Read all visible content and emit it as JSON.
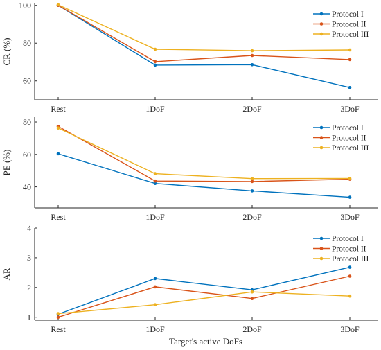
{
  "chart_data": [
    {
      "type": "line",
      "ylabel": "CR (%)",
      "categories": [
        "Rest",
        "1DoF",
        "2DoF",
        "3DoF"
      ],
      "ylim": [
        50,
        101
      ],
      "yticks": [
        60,
        80,
        100
      ],
      "legend_position": "top-right",
      "series": [
        {
          "name": "Protocol I",
          "values": [
            100,
            68.4,
            68.6,
            56.5
          ]
        },
        {
          "name": "Protocol II",
          "values": [
            100,
            70.2,
            73.5,
            71.3
          ]
        },
        {
          "name": "Protocol III",
          "values": [
            100.3,
            76.8,
            76.0,
            76.4
          ]
        }
      ]
    },
    {
      "type": "line",
      "ylabel": "PE (%)",
      "categories": [
        "Rest",
        "1DoF",
        "2DoF",
        "3DoF"
      ],
      "ylim": [
        27,
        83
      ],
      "yticks": [
        40,
        60,
        80
      ],
      "legend_position": "top-right",
      "series": [
        {
          "name": "Protocol I",
          "values": [
            60.4,
            42.1,
            37.5,
            33.6
          ]
        },
        {
          "name": "Protocol II",
          "values": [
            77.3,
            43.6,
            43.3,
            44.7
          ]
        },
        {
          "name": "Protocol III",
          "values": [
            76.3,
            48.1,
            45.1,
            45.2
          ]
        }
      ]
    },
    {
      "type": "line",
      "ylabel": "AR",
      "xlabel": "Target's active DoFs",
      "categories": [
        "Rest",
        "1DoF",
        "2DoF",
        "3DoF"
      ],
      "ylim": [
        0.9,
        4
      ],
      "yticks": [
        1,
        2,
        3,
        4
      ],
      "legend_position": "top-right",
      "series": [
        {
          "name": "Protocol I",
          "values": [
            1.1,
            2.3,
            1.92,
            2.68
          ]
        },
        {
          "name": "Protocol II",
          "values": [
            1.0,
            2.02,
            1.63,
            2.38
          ]
        },
        {
          "name": "Protocol III",
          "values": [
            1.12,
            1.42,
            1.85,
            1.71
          ]
        }
      ]
    }
  ],
  "colors": {
    "Protocol I": "#0072BD",
    "Protocol II": "#D95319",
    "Protocol III": "#EDB120",
    "axis": "#262626",
    "background": "#ffffff"
  }
}
